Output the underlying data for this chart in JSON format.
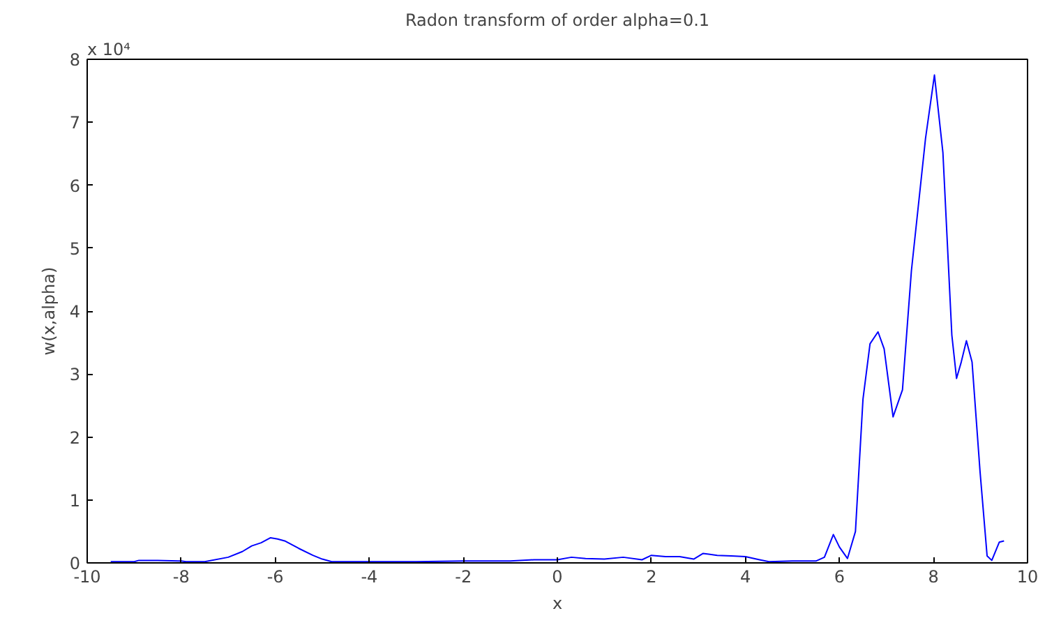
{
  "chart_data": {
    "type": "line",
    "title": "Radon transform of order alpha=0.1",
    "xlabel": "x",
    "ylabel": "w(x,alpha)",
    "annotations": [
      "x 10⁴"
    ],
    "series": [
      {
        "color": "#0000ff",
        "x": [
          -9.5,
          -9.0,
          -8.9,
          -8.5,
          -8.0,
          -7.9,
          -7.5,
          -7.0,
          -6.7,
          -6.5,
          -6.3,
          -6.1,
          -5.95,
          -5.8,
          -5.5,
          -5.2,
          -5.0,
          -4.8,
          -4.0,
          -3.0,
          -2.0,
          -1.5,
          -1.0,
          -0.5,
          0.0,
          0.3,
          0.6,
          1.0,
          1.4,
          1.8,
          2.0,
          2.3,
          2.6,
          2.9,
          3.1,
          3.4,
          3.7,
          4.0,
          4.3,
          4.5,
          5.0,
          5.5,
          5.68,
          5.87,
          6.0,
          6.17,
          6.34,
          6.5,
          6.65,
          6.82,
          6.95,
          7.14,
          7.34,
          7.53,
          7.83,
          8.02,
          8.2,
          8.39,
          8.49,
          8.59,
          8.7,
          8.82,
          8.99,
          9.14,
          9.24,
          9.4,
          9.5
        ],
        "values": [
          0.02,
          0.02,
          0.04,
          0.04,
          0.03,
          0.02,
          0.02,
          0.09,
          0.18,
          0.27,
          0.32,
          0.4,
          0.38,
          0.35,
          0.23,
          0.12,
          0.06,
          0.02,
          0.02,
          0.02,
          0.03,
          0.03,
          0.03,
          0.05,
          0.05,
          0.09,
          0.07,
          0.06,
          0.09,
          0.05,
          0.12,
          0.1,
          0.1,
          0.06,
          0.15,
          0.12,
          0.11,
          0.1,
          0.05,
          0.02,
          0.03,
          0.03,
          0.09,
          0.45,
          0.25,
          0.07,
          0.5,
          2.6,
          3.48,
          3.67,
          3.4,
          2.32,
          2.75,
          4.64,
          6.74,
          7.75,
          6.52,
          3.62,
          2.93,
          3.19,
          3.53,
          3.19,
          1.45,
          0.11,
          0.04,
          0.33,
          0.35
        ]
      }
    ],
    "xlim": [
      -10,
      10
    ],
    "xticks": [
      -10,
      -8,
      -6,
      -4,
      -2,
      0,
      2,
      4,
      6,
      8,
      10
    ],
    "ylim": [
      0,
      8
    ],
    "yticks": [
      0,
      1,
      2,
      3,
      4,
      5,
      6,
      7,
      8
    ],
    "grid": false
  }
}
